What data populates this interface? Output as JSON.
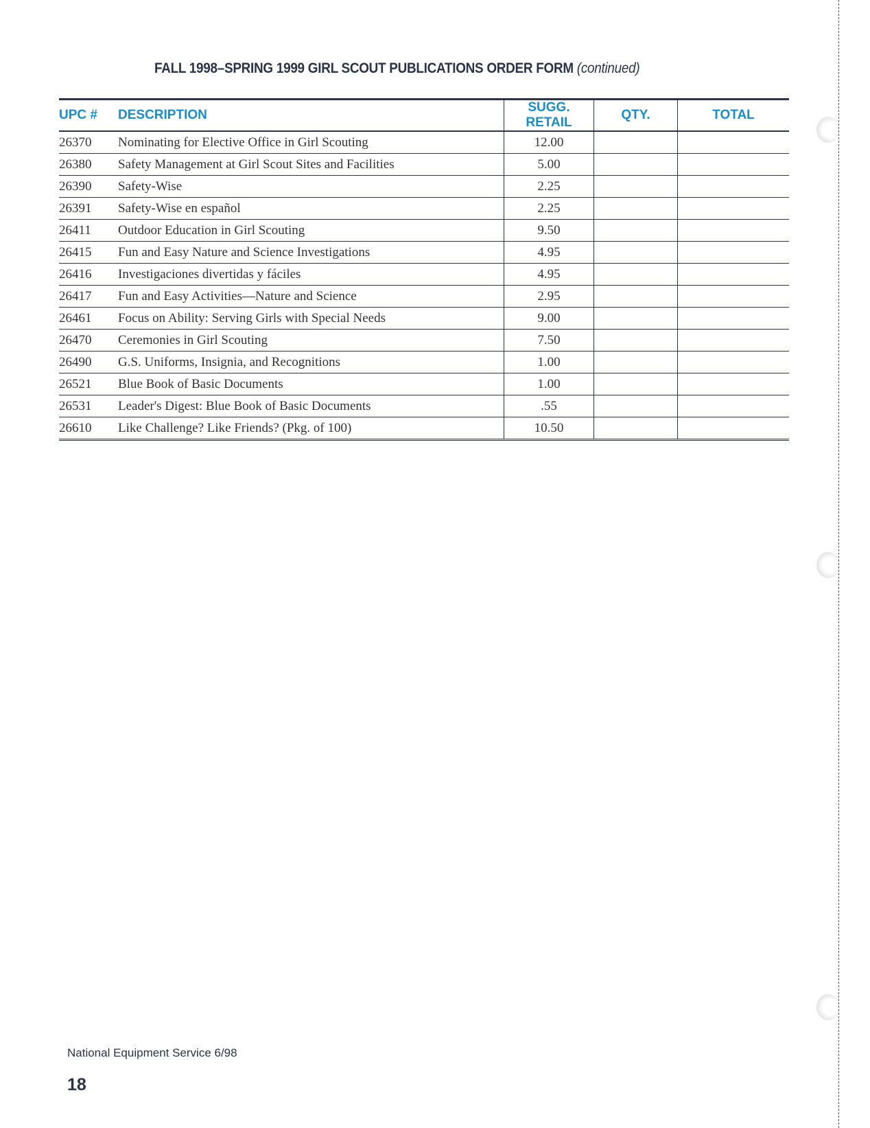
{
  "title": {
    "main": "FALL 1998–SPRING 1999 GIRL SCOUT PUBLICATIONS ORDER FORM",
    "suffix": "(continued)"
  },
  "columns": {
    "upc": "UPC #",
    "description": "DESCRIPTION",
    "price": "SUGG. RETAIL",
    "qty": "QTY.",
    "total": "TOTAL"
  },
  "rows": [
    {
      "upc": "26370",
      "description": "Nominating for Elective Office in Girl Scouting",
      "price": "12.00"
    },
    {
      "upc": "26380",
      "description": "Safety Management at Girl Scout Sites and Facilities",
      "price": "5.00"
    },
    {
      "upc": "26390",
      "description": "Safety-Wise",
      "price": "2.25"
    },
    {
      "upc": "26391",
      "description": "Safety-Wise en español",
      "price": "2.25"
    },
    {
      "upc": "26411",
      "description": "Outdoor Education in Girl Scouting",
      "price": "9.50"
    },
    {
      "upc": "26415",
      "description": "Fun and Easy Nature and Science Investigations",
      "price": "4.95"
    },
    {
      "upc": "26416",
      "description": "Investigaciones divertidas y fáciles",
      "price": "4.95"
    },
    {
      "upc": "26417",
      "description": "Fun and Easy Activities—Nature and Science",
      "price": "2.95"
    },
    {
      "upc": "26461",
      "description": "Focus on Ability: Serving Girls with Special Needs",
      "price": "9.00"
    },
    {
      "upc": "26470",
      "description": "Ceremonies in Girl Scouting",
      "price": "7.50"
    },
    {
      "upc": "26490",
      "description": "G.S. Uniforms, Insignia, and Recognitions",
      "price": "1.00"
    },
    {
      "upc": "26521",
      "description": "Blue Book of Basic Documents",
      "price": "1.00"
    },
    {
      "upc": "26531",
      "description": "Leader's Digest: Blue Book of Basic Documents",
      "price": ".55"
    },
    {
      "upc": "26610",
      "description": "Like Challenge? Like Friends?  (Pkg. of 100)",
      "price": "10.50"
    }
  ],
  "footer": {
    "text": "National Equipment Service  6/98",
    "page_number": "18"
  },
  "colors": {
    "header_text": "#1a8cc8",
    "body_text": "#2a3347"
  }
}
